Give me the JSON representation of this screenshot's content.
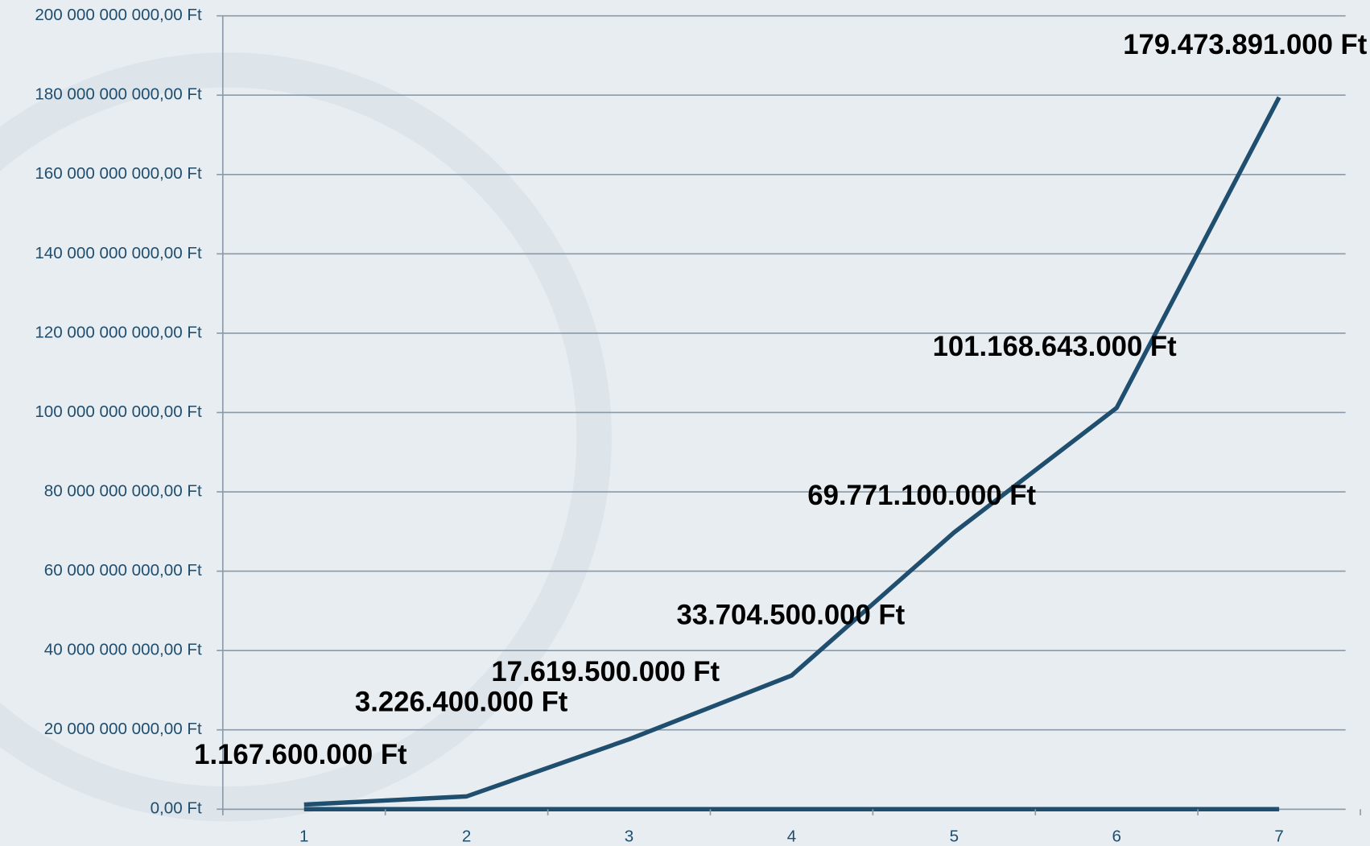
{
  "chart_data": {
    "type": "line",
    "categories": [
      "1",
      "2",
      "3",
      "4",
      "5",
      "6",
      "7"
    ],
    "series": [
      {
        "color": "#1f4e6e",
        "values": [
          1167600000,
          3226400000,
          17619500000,
          33704500000,
          69771100000,
          101168643000,
          179473891000
        ],
        "value_labels": [
          "1.167.600.000 Ft",
          "3.226.400.000 Ft",
          "17.619.500.000 Ft",
          "33.704.500.000 Ft",
          "69.771.100.000 Ft",
          "101.168.643.000 Ft",
          "179.473.891.000 Ft"
        ]
      }
    ],
    "ylim": [
      0,
      200000000000
    ],
    "yticks": [
      {
        "value": 0,
        "label": "0,00 Ft"
      },
      {
        "value": 20000000000,
        "label": "20 000 000 000,00 Ft"
      },
      {
        "value": 40000000000,
        "label": "40 000 000 000,00 Ft"
      },
      {
        "value": 60000000000,
        "label": "60 000 000 000,00 Ft"
      },
      {
        "value": 80000000000,
        "label": "80 000 000 000,00 Ft"
      },
      {
        "value": 100000000000,
        "label": "100 000 000 000,00 Ft"
      },
      {
        "value": 120000000000,
        "label": "120 000 000 000,00 Ft"
      },
      {
        "value": 140000000000,
        "label": "140 000 000 000,00 Ft"
      },
      {
        "value": 160000000000,
        "label": "160 000 000 000,00 Ft"
      },
      {
        "value": 180000000000,
        "label": "180 000 000 000,00 Ft"
      },
      {
        "value": 200000000000,
        "label": "200 000 000 000,00 Ft"
      }
    ],
    "grid": true
  }
}
